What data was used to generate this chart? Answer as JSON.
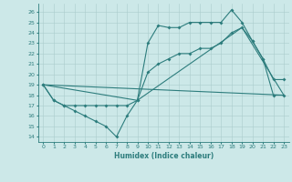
{
  "xlabel": "Humidex (Indice chaleur)",
  "bg_color": "#cce8e8",
  "line_color": "#2d7d7d",
  "grid_color": "#aacccc",
  "xlim": [
    -0.5,
    23.5
  ],
  "ylim": [
    13.5,
    26.8
  ],
  "yticks": [
    14,
    15,
    16,
    17,
    18,
    19,
    20,
    21,
    22,
    23,
    24,
    25,
    26
  ],
  "xticks": [
    0,
    1,
    2,
    3,
    4,
    5,
    6,
    7,
    8,
    9,
    10,
    11,
    12,
    13,
    14,
    15,
    16,
    17,
    18,
    19,
    20,
    21,
    22,
    23
  ],
  "series1_x": [
    0,
    1,
    2,
    3,
    4,
    5,
    6,
    7,
    8,
    9,
    10,
    11,
    12,
    13,
    14,
    15,
    16,
    17,
    18,
    19,
    20,
    21,
    22,
    23
  ],
  "series1_y": [
    19,
    17.5,
    17,
    16.5,
    16,
    15.5,
    15,
    14,
    16,
    17.5,
    23,
    24.7,
    24.5,
    24.5,
    25,
    25,
    25,
    25,
    26.2,
    25,
    23.2,
    21.5,
    19.5,
    19.5
  ],
  "series2_x": [
    0,
    1,
    2,
    3,
    4,
    5,
    6,
    7,
    8,
    9,
    10,
    11,
    12,
    13,
    14,
    15,
    16,
    17,
    18,
    19,
    20,
    21,
    22,
    23
  ],
  "series2_y": [
    19,
    17.5,
    17,
    17,
    17,
    17,
    17,
    17,
    17,
    17.5,
    20.2,
    21,
    21.5,
    22,
    22,
    22.5,
    22.5,
    23,
    24,
    24.5,
    23.2,
    21.5,
    18,
    18
  ],
  "series3_x": [
    0,
    23
  ],
  "series3_y": [
    19,
    18
  ],
  "series4_x": [
    0,
    9,
    19,
    23
  ],
  "series4_y": [
    19,
    17.5,
    24.5,
    18
  ]
}
